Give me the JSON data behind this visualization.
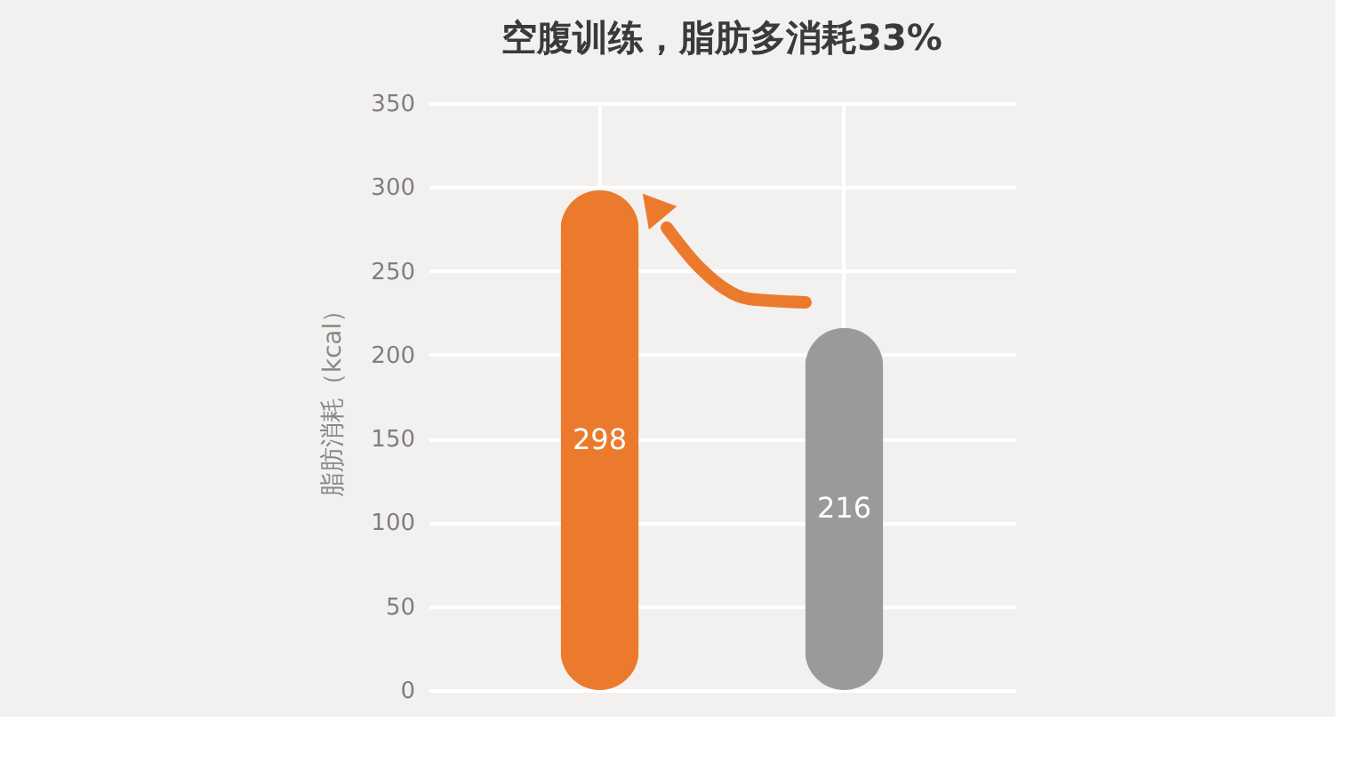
{
  "chart_data": {
    "type": "bar",
    "title": "空腹训练，脂肪多消耗33%",
    "ylabel": "脂肪消耗（kcal）",
    "categories": [
      null,
      null
    ],
    "values": [
      298,
      216
    ],
    "colors": [
      "#ec7a2c",
      "#9b9a9a"
    ],
    "ylim": [
      0,
      350
    ],
    "yticks": [
      0,
      50,
      100,
      150,
      200,
      250,
      300,
      350
    ],
    "grid": true,
    "data_labels": true
  }
}
